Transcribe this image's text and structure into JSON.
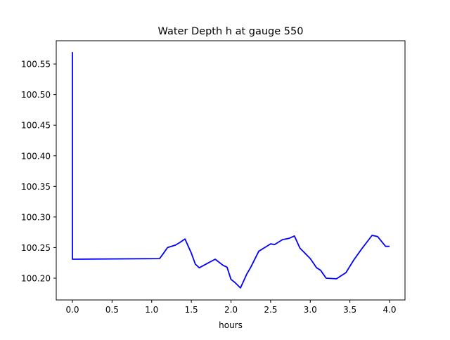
{
  "chart_data": {
    "type": "line",
    "title": "Water Depth h at gauge 550",
    "xlabel": "hours",
    "ylabel": "",
    "xlim": [
      -0.204,
      4.195
    ],
    "ylim": [
      100.1644,
      100.588
    ],
    "xticks": [
      0.0,
      0.5,
      1.0,
      1.5,
      2.0,
      2.5,
      3.0,
      3.5,
      4.0
    ],
    "xtick_labels": [
      "0.0",
      "0.5",
      "1.0",
      "1.5",
      "2.0",
      "2.5",
      "3.0",
      "3.5",
      "4.0"
    ],
    "yticks": [
      100.2,
      100.25,
      100.3,
      100.35,
      100.4,
      100.45,
      100.5,
      100.55
    ],
    "ytick_labels": [
      "100.20",
      "100.25",
      "100.30",
      "100.35",
      "100.40",
      "100.45",
      "100.50",
      "100.55"
    ],
    "grid": false,
    "series": [
      {
        "name": "h",
        "color": "#0000ff",
        "x": [
          0,
          0,
          0.005,
          1.1,
          1.15,
          1.2,
          1.3,
          1.35,
          1.42,
          1.5,
          1.55,
          1.6,
          1.7,
          1.8,
          1.9,
          1.95,
          2.0,
          2.05,
          2.12,
          2.2,
          2.25,
          2.35,
          2.5,
          2.55,
          2.65,
          2.73,
          2.8,
          2.87,
          3.0,
          3.08,
          3.13,
          3.2,
          3.33,
          3.45,
          3.55,
          3.65,
          3.78,
          3.85,
          3.95,
          4.0
        ],
        "y": [
          100.5695,
          100.231,
          100.231,
          100.232,
          100.241,
          100.25,
          100.254,
          100.258,
          100.264,
          100.241,
          100.223,
          100.217,
          100.224,
          100.231,
          100.221,
          100.218,
          100.198,
          100.193,
          100.184,
          100.207,
          100.218,
          100.244,
          100.256,
          100.255,
          100.263,
          100.265,
          100.269,
          100.249,
          100.232,
          100.217,
          100.213,
          100.2,
          100.199,
          100.209,
          100.23,
          100.248,
          100.27,
          100.268,
          100.252,
          100.252
        ]
      }
    ]
  }
}
